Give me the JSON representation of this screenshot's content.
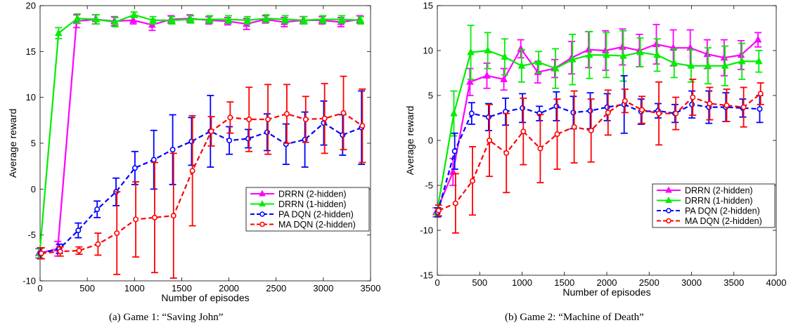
{
  "captions": {
    "a": "(a)  Game 1: “Saving John”",
    "b": "(b)  Game 2: “Machine of Death”"
  },
  "chart_data": [
    {
      "type": "line",
      "xlabel": "Number of episodes",
      "ylabel": "Average reward",
      "xlim": [
        0,
        3500
      ],
      "ylim": [
        -10,
        20
      ],
      "xticks": [
        0,
        500,
        1000,
        1500,
        2000,
        2500,
        3000,
        3500
      ],
      "yticks": [
        -10,
        -5,
        0,
        5,
        10,
        15,
        20
      ],
      "grid": false,
      "legend_position": "right-middle",
      "x": [
        0,
        200,
        400,
        600,
        800,
        1000,
        1200,
        1400,
        1600,
        1800,
        2000,
        2200,
        2400,
        2600,
        2800,
        3000,
        3200,
        3400
      ],
      "series": [
        {
          "name": "DRRN (2-hidden)",
          "color": "#ff00ff",
          "style": "solid",
          "marker": "triangle",
          "values": [
            -7.0,
            -6.5,
            18.3,
            18.5,
            18.3,
            18.4,
            17.9,
            18.5,
            18.6,
            18.4,
            18.3,
            18.0,
            18.5,
            18.2,
            18.4,
            18.4,
            18.2,
            18.5
          ],
          "errors": [
            0.5,
            0.8,
            0.7,
            0.5,
            0.5,
            0.4,
            0.6,
            0.4,
            0.4,
            0.4,
            0.4,
            0.6,
            0.4,
            0.5,
            0.4,
            0.4,
            0.5,
            0.4
          ]
        },
        {
          "name": "DRRN (1-hidden)",
          "color": "#00ee00",
          "style": "solid",
          "marker": "triangle",
          "values": [
            -7.0,
            17.0,
            18.6,
            18.5,
            18.2,
            19.0,
            18.4,
            18.4,
            18.5,
            18.5,
            18.5,
            18.4,
            18.6,
            18.5,
            18.4,
            18.5,
            18.5,
            18.4
          ],
          "errors": [
            0.5,
            0.6,
            0.5,
            0.5,
            0.5,
            0.3,
            0.4,
            0.4,
            0.4,
            0.4,
            0.4,
            0.4,
            0.4,
            0.4,
            0.4,
            0.4,
            0.4,
            0.4
          ]
        },
        {
          "name": "PA DQN (2-hidden)",
          "color": "#0000ff",
          "style": "dashed",
          "marker": "circle",
          "values": [
            -7.0,
            -6.5,
            -4.5,
            -2.2,
            -0.3,
            2.3,
            3.2,
            4.3,
            5.2,
            6.3,
            5.3,
            5.5,
            6.2,
            4.9,
            5.4,
            7.2,
            5.9,
            6.7
          ],
          "errors": [
            0.6,
            0.5,
            0.8,
            0.9,
            1.5,
            1.8,
            3.2,
            3.8,
            2.6,
            3.9,
            1.5,
            1.0,
            2.0,
            2.2,
            3.0,
            2.4,
            2.2,
            4.0
          ]
        },
        {
          "name": "MA DQN (2-hidden)",
          "color": "#ff0000",
          "style": "dashed",
          "marker": "circle",
          "values": [
            -7.0,
            -6.8,
            -6.7,
            -6.0,
            -4.8,
            -3.3,
            -3.1,
            -2.9,
            2.0,
            6.3,
            7.8,
            7.6,
            7.6,
            8.2,
            7.6,
            7.7,
            8.3,
            6.9
          ],
          "errors": [
            0.6,
            0.5,
            0.4,
            1.2,
            4.5,
            4.1,
            6.0,
            6.8,
            6.0,
            1.6,
            1.7,
            3.5,
            3.8,
            3.2,
            2.5,
            3.8,
            4.0,
            4.0
          ]
        }
      ]
    },
    {
      "type": "line",
      "xlabel": "Number of episodes",
      "ylabel": "Average reward",
      "xlim": [
        0,
        4000
      ],
      "ylim": [
        -15,
        15
      ],
      "xticks": [
        0,
        500,
        1000,
        1500,
        2000,
        2500,
        3000,
        3500,
        4000
      ],
      "yticks": [
        -15,
        -10,
        -5,
        0,
        5,
        10,
        15
      ],
      "grid": false,
      "legend_position": "right-middle",
      "x": [
        0,
        200,
        400,
        600,
        800,
        1000,
        1200,
        1400,
        1600,
        1800,
        2000,
        2200,
        2400,
        2600,
        2800,
        3000,
        3200,
        3400,
        3600,
        3800
      ],
      "series": [
        {
          "name": "DRRN (2-hidden)",
          "color": "#ff00ff",
          "style": "solid",
          "marker": "triangle",
          "values": [
            -8.0,
            -3.5,
            6.5,
            7.2,
            6.8,
            10.2,
            7.6,
            8.0,
            9.2,
            10.1,
            10.0,
            10.4,
            10.0,
            10.7,
            10.3,
            10.3,
            9.6,
            9.2,
            9.5,
            11.2
          ],
          "errors": [
            0.5,
            1.5,
            1.5,
            1.4,
            1.2,
            1.0,
            1.2,
            1.0,
            1.8,
            2.0,
            2.2,
            2.0,
            1.8,
            2.2,
            2.0,
            2.0,
            1.6,
            2.0,
            1.6,
            0.8
          ]
        },
        {
          "name": "DRRN (1-hidden)",
          "color": "#00ee00",
          "style": "solid",
          "marker": "triangle",
          "values": [
            -8.0,
            3.0,
            9.8,
            10.0,
            9.3,
            8.3,
            8.7,
            8.0,
            9.0,
            9.5,
            9.5,
            9.4,
            9.8,
            9.5,
            8.6,
            8.3,
            8.3,
            8.3,
            8.8,
            8.8
          ],
          "errors": [
            0.5,
            2.5,
            3.0,
            2.0,
            2.0,
            1.8,
            1.2,
            2.2,
            2.8,
            2.6,
            2.5,
            2.8,
            1.6,
            1.8,
            1.6,
            1.8,
            2.0,
            2.2,
            2.0,
            1.2
          ]
        },
        {
          "name": "PA DQN (2-hidden)",
          "color": "#0000ff",
          "style": "dashed",
          "marker": "circle",
          "values": [
            -8.0,
            -1.2,
            3.0,
            2.6,
            3.2,
            3.6,
            3.0,
            3.8,
            3.1,
            3.3,
            3.7,
            4.0,
            3.2,
            3.3,
            3.0,
            4.0,
            3.7,
            3.7,
            3.6,
            3.5
          ],
          "errors": [
            0.5,
            2.0,
            1.2,
            1.5,
            1.5,
            1.6,
            0.8,
            1.6,
            1.8,
            2.0,
            1.5,
            3.2,
            1.4,
            0.8,
            1.0,
            1.5,
            1.8,
            1.6,
            1.0,
            1.5
          ]
        },
        {
          "name": "MA DQN (2-hidden)",
          "color": "#ff0000",
          "style": "dashed",
          "marker": "circle",
          "values": [
            -7.8,
            -7.0,
            -4.5,
            0.0,
            -1.4,
            1.0,
            -0.9,
            0.7,
            1.5,
            1.1,
            3.1,
            4.4,
            3.4,
            3.0,
            3.0,
            4.8,
            4.1,
            3.9,
            3.7,
            5.2
          ],
          "errors": [
            0.6,
            3.3,
            3.8,
            4.0,
            4.4,
            3.7,
            3.8,
            3.9,
            4.0,
            3.5,
            2.5,
            1.3,
            1.5,
            3.5,
            1.8,
            2.0,
            1.8,
            1.8,
            2.2,
            1.2
          ]
        }
      ]
    }
  ]
}
